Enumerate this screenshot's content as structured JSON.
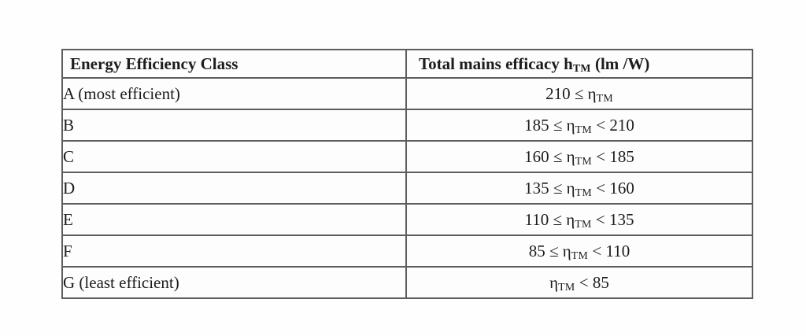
{
  "colors": {
    "border": "#5c5d5f",
    "text": "#1c1c1c",
    "background": "#fefefe"
  },
  "table": {
    "header": {
      "class_column": "Energy Efficiency Class",
      "value_column_prefix": "Total mains efficacy h",
      "value_column_sub": "TM",
      "value_column_suffix": " (lm /W)"
    },
    "rows": [
      {
        "label": "A (most efficient)",
        "eff_prefix": "210 ≤ η",
        "eff_sub": "TM",
        "eff_suffix": ""
      },
      {
        "label": "B",
        "eff_prefix": "185 ≤ η",
        "eff_sub": "TM",
        "eff_suffix": " < 210"
      },
      {
        "label": "C",
        "eff_prefix": "160 ≤ η",
        "eff_sub": "TM",
        "eff_suffix": " < 185"
      },
      {
        "label": "D",
        "eff_prefix": "135 ≤ η",
        "eff_sub": "TM",
        "eff_suffix": " < 160"
      },
      {
        "label": "E",
        "eff_prefix": "110 ≤ η",
        "eff_sub": "TM",
        "eff_suffix": " < 135"
      },
      {
        "label": "F",
        "eff_prefix": "85 ≤ η",
        "eff_sub": "TM",
        "eff_suffix": " < 110"
      },
      {
        "label": "G (least efficient)",
        "eff_prefix": "η",
        "eff_sub": "TM",
        "eff_suffix": " < 85"
      }
    ]
  }
}
